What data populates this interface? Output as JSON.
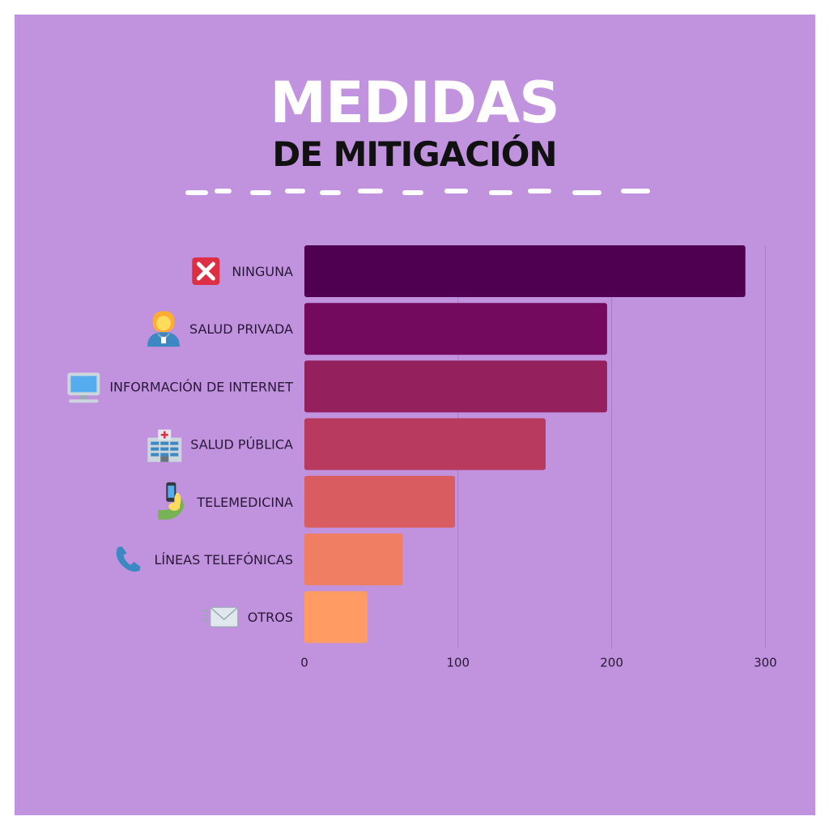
{
  "title": "MEDIDAS",
  "subtitle": "DE MITIGACIÓN",
  "colors": {
    "background": "#c192dd",
    "grid": "#a97fc6",
    "label": "#2a1838",
    "bars": [
      "#4f0050",
      "#740a5d",
      "#95205e",
      "#b93a5f",
      "#d95c60",
      "#ef7e62",
      "#ff9b63"
    ]
  },
  "chart_data": {
    "type": "bar",
    "orientation": "horizontal",
    "categories": [
      "NINGUNA",
      "SALUD PRIVADA",
      "INFORMACIÓN DE INTERNET",
      "SALUD PÚBLICA",
      "TELEMEDICINA",
      "LÍNEAS TELEFÓNICAS",
      "OTROS"
    ],
    "icons": [
      "cross-mark-icon",
      "health-worker-icon",
      "computer-icon",
      "hospital-icon",
      "phone-in-hand-icon",
      "telephone-receiver-icon",
      "envelope-icon"
    ],
    "values": [
      287,
      197,
      197,
      157,
      98,
      64,
      41
    ],
    "xticks": [
      0,
      100,
      200,
      300
    ],
    "xlim": [
      0,
      300
    ],
    "grid": true,
    "title": "",
    "xlabel": "",
    "ylabel": ""
  }
}
